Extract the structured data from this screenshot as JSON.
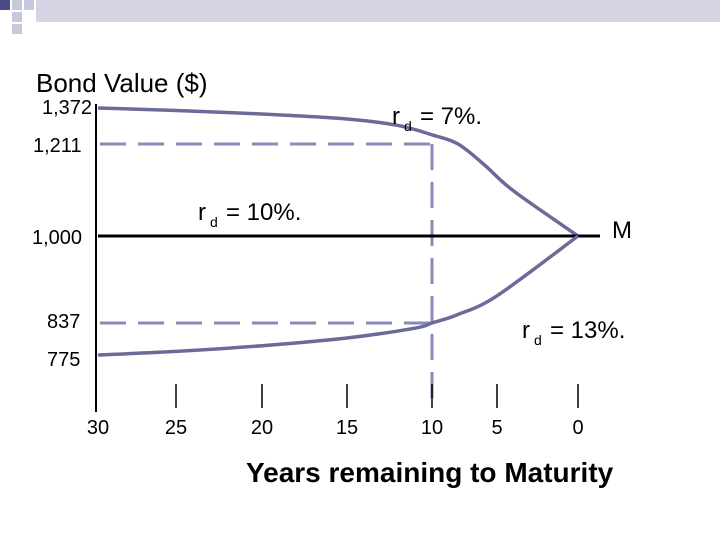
{
  "chart_data": {
    "type": "line",
    "title": "Bond Value ($)",
    "xlabel": "Years remaining to Maturity",
    "ylabel": "",
    "x_ticks": [
      "30",
      "25",
      "20",
      "15",
      "10",
      "5",
      "0"
    ],
    "y_ticks": [
      "1,372",
      "1,211",
      "1,000",
      "837",
      "775"
    ],
    "y_tick_values": [
      1372,
      1211,
      1000,
      837,
      775
    ],
    "maturity_label": "M",
    "series": [
      {
        "name": "rd = 7%.",
        "rate_label": "= 7%.",
        "values": [
          1372,
          1361,
          1345,
          1323,
          1294,
          1252,
          1211,
          1164,
          1104,
          1000
        ],
        "x": [
          30,
          25,
          20,
          15,
          12,
          10,
          8,
          6,
          4,
          0
        ]
      },
      {
        "name": "rd = 10%.",
        "rate_label": "= 10%.",
        "values": [
          1000,
          1000,
          1000,
          1000,
          1000,
          1000,
          1000
        ],
        "x": [
          30,
          25,
          20,
          15,
          10,
          5,
          0
        ]
      },
      {
        "name": "rd = 13%.",
        "rate_label": "= 13%.",
        "values": [
          775,
          782,
          793,
          808,
          827,
          837,
          853,
          888,
          1000
        ],
        "x": [
          30,
          25,
          20,
          15,
          11,
          10,
          8,
          5,
          0
        ]
      }
    ],
    "reference_lines": [
      {
        "y": 1211,
        "x_end": 10
      },
      {
        "y": 837,
        "x_end": 10
      },
      {
        "x": 10
      }
    ],
    "colors": {
      "curve": "#6B6B9A",
      "dashed": "#8A8AB8",
      "par_line": "#000000",
      "deco_dark": "#4A4A8A",
      "deco_light": "#C8C8DC"
    }
  }
}
